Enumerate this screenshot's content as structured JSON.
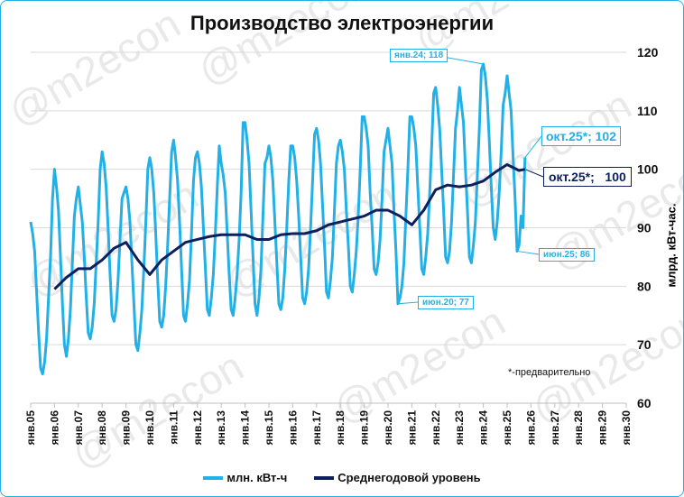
{
  "title": "Производство электроэнергии",
  "note": "*-предварительно",
  "colors": {
    "monthly": "#22b0e6",
    "average": "#0d1f5c",
    "grid": "#d9d9d9"
  },
  "watermark": "@m2econ",
  "chart_data": {
    "type": "line",
    "title": "Производство электроэнергии",
    "ylabel": "млрд. кВт-час.",
    "ylim": [
      60,
      120
    ],
    "yticks": [
      "60",
      "70",
      "80",
      "90",
      "100",
      "110",
      "120"
    ],
    "y_axis_side": "right",
    "grid": "horizontal",
    "legend_position": "bottom",
    "x_start": "2005-01",
    "xticks": [
      "янв.05",
      "янв.06",
      "янв.07",
      "янв.08",
      "янв.09",
      "янв.10",
      "янв.11",
      "янв.12",
      "янв.13",
      "янв.14",
      "янв.15",
      "янв.16",
      "янв.17",
      "янв.18",
      "янв.19",
      "янв.20",
      "янв.21",
      "янв.22",
      "янв.23",
      "янв.24",
      "янв.25",
      "янв.26",
      "янв.27",
      "янв.28",
      "янв.29",
      "янв.30"
    ],
    "series": [
      {
        "name": "млн. кВт-ч",
        "frequency": "monthly",
        "values": [
          91,
          89,
          86,
          79,
          72,
          66,
          65,
          67,
          71,
          78,
          85,
          95,
          100,
          97,
          93,
          85,
          77,
          70,
          68,
          71,
          76,
          84,
          92,
          95,
          97,
          94,
          91,
          85,
          78,
          72,
          71,
          73,
          77,
          84,
          91,
          100,
          103,
          101,
          97,
          90,
          82,
          75,
          74,
          76,
          81,
          88,
          95,
          96,
          97,
          95,
          91,
          84,
          77,
          70,
          69,
          72,
          76,
          83,
          91,
          100,
          102,
          100,
          96,
          89,
          81,
          74,
          73,
          75,
          80,
          87,
          95,
          103,
          105,
          102,
          98,
          91,
          83,
          75,
          74,
          77,
          81,
          89,
          98,
          102,
          103,
          101,
          97,
          90,
          83,
          76,
          75,
          78,
          82,
          89,
          97,
          104,
          101,
          99,
          96,
          89,
          82,
          76,
          75,
          78,
          82,
          88,
          96,
          108,
          108,
          105,
          101,
          93,
          85,
          77,
          75,
          78,
          83,
          92,
          101,
          102,
          104,
          102,
          98,
          91,
          84,
          77,
          76,
          78,
          83,
          90,
          98,
          104,
          104,
          102,
          98,
          92,
          85,
          78,
          77,
          79,
          83,
          90,
          98,
          106,
          107,
          105,
          101,
          94,
          87,
          79,
          78,
          81,
          85,
          93,
          101,
          104,
          105,
          103,
          100,
          93,
          87,
          80,
          79,
          82,
          86,
          92,
          100,
          109,
          109,
          107,
          104,
          96,
          90,
          83,
          82,
          84,
          88,
          95,
          103,
          105,
          107,
          104,
          101,
          93,
          86,
          77,
          78,
          80,
          84,
          92,
          100,
          109,
          109,
          107,
          104,
          97,
          90,
          83,
          82,
          85,
          89,
          96,
          104,
          113,
          114,
          111,
          107,
          100,
          93,
          85,
          84,
          86,
          91,
          99,
          107,
          110,
          114,
          111,
          108,
          100,
          93,
          85,
          84,
          87,
          91,
          99,
          107,
          117,
          118,
          116,
          112,
          105,
          97,
          90,
          88,
          91,
          96,
          103,
          111,
          113,
          116,
          113,
          110,
          102,
          95,
          86,
          87,
          92,
          90,
          102
        ]
      },
      {
        "name": "Среднегодовой уровень",
        "points": [
          [
            "2006-01",
            79.5
          ],
          [
            "2006-07",
            81.5
          ],
          [
            "2007-01",
            83
          ],
          [
            "2007-07",
            83
          ],
          [
            "2008-01",
            84.5
          ],
          [
            "2008-07",
            86.5
          ],
          [
            "2009-01",
            87.5
          ],
          [
            "2009-07",
            84.5
          ],
          [
            "2010-01",
            82
          ],
          [
            "2010-07",
            84.5
          ],
          [
            "2011-01",
            86
          ],
          [
            "2011-07",
            87.5
          ],
          [
            "2012-01",
            88
          ],
          [
            "2012-07",
            88.5
          ],
          [
            "2013-01",
            88.8
          ],
          [
            "2013-07",
            88.8
          ],
          [
            "2014-01",
            88.8
          ],
          [
            "2014-07",
            88
          ],
          [
            "2015-01",
            88
          ],
          [
            "2015-07",
            88.8
          ],
          [
            "2016-01",
            89
          ],
          [
            "2016-07",
            89
          ],
          [
            "2017-01",
            89.5
          ],
          [
            "2017-07",
            90.5
          ],
          [
            "2018-01",
            91
          ],
          [
            "2018-07",
            91.5
          ],
          [
            "2019-01",
            92
          ],
          [
            "2019-07",
            93
          ],
          [
            "2020-01",
            93
          ],
          [
            "2020-07",
            92
          ],
          [
            "2021-01",
            90.5
          ],
          [
            "2021-07",
            93
          ],
          [
            "2022-01",
            96.5
          ],
          [
            "2022-07",
            97.3
          ],
          [
            "2023-01",
            97
          ],
          [
            "2023-07",
            97.3
          ],
          [
            "2024-01",
            98
          ],
          [
            "2024-07",
            99.5
          ],
          [
            "2025-01",
            100.8
          ],
          [
            "2025-07",
            99.8
          ],
          [
            "2025-10",
            100
          ]
        ]
      }
    ],
    "annotations": [
      {
        "label": "янв.24; 118",
        "date": "2024-01",
        "value": 118,
        "series": "млн. кВт-ч"
      },
      {
        "label": "окт.25*; 102",
        "date": "2025-10",
        "value": 102,
        "series": "млн. кВт-ч"
      },
      {
        "label": "окт.25*;   100",
        "date": "2025-10",
        "value": 100,
        "series": "Среднегодовой уровень"
      },
      {
        "label": "июн.25; 86",
        "date": "2025-06",
        "value": 86,
        "series": "млн. кВт-ч"
      },
      {
        "label": "июн.20; 77",
        "date": "2020-06",
        "value": 77,
        "series": "млн. кВт-ч"
      }
    ]
  }
}
